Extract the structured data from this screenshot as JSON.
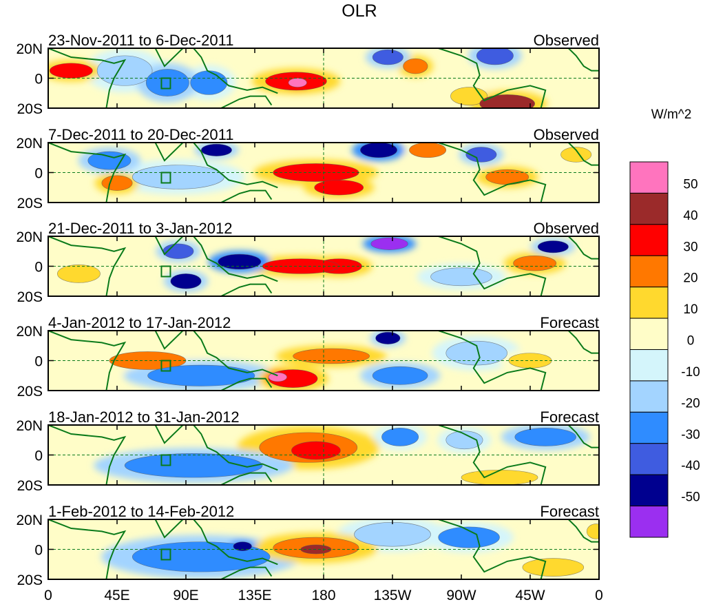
{
  "chart_data": {
    "type": "heatmap",
    "title": "OLR",
    "units": "W/m^2",
    "lat_ticks": [
      "20N",
      "0",
      "20S"
    ],
    "lon_ticks": [
      "0",
      "45E",
      "90E",
      "135E",
      "180",
      "135W",
      "90W",
      "45W",
      "0"
    ],
    "lon_range": [
      0,
      360
    ],
    "lat_range": [
      -20,
      20
    ],
    "colorbar": {
      "levels": [
        50,
        40,
        30,
        20,
        10,
        0,
        -10,
        -20,
        -30,
        -40,
        -50
      ],
      "colors": [
        "#ff74be",
        "#9b2a2a",
        "#ff0000",
        "#ff7800",
        "#ffd92e",
        "#fffdc8",
        "#d4f5fb",
        "#a3d4ff",
        "#2f8cff",
        "#3f5ce0",
        "#00008f",
        "#9b2ff0"
      ]
    },
    "panels": [
      {
        "period": "23-Nov-2011 to 6-Dec-2011",
        "label": "Observed",
        "anomalies": [
          {
            "lon": 15,
            "lat": 5,
            "rx": 14,
            "ry": 5,
            "v": 38
          },
          {
            "lon": 50,
            "lat": 5,
            "rx": 18,
            "ry": 10,
            "v": -15
          },
          {
            "lon": 78,
            "lat": -3,
            "rx": 14,
            "ry": 9,
            "v": -28
          },
          {
            "lon": 105,
            "lat": -3,
            "rx": 12,
            "ry": 8,
            "v": -22
          },
          {
            "lon": 162,
            "lat": -2,
            "rx": 20,
            "ry": 6,
            "v": 35
          },
          {
            "lon": 163,
            "lat": -3,
            "rx": 6,
            "ry": 3,
            "v": 55
          },
          {
            "lon": 222,
            "lat": 14,
            "rx": 10,
            "ry": 5,
            "v": -35
          },
          {
            "lon": 240,
            "lat": 8,
            "rx": 8,
            "ry": 5,
            "v": 24
          },
          {
            "lon": 292,
            "lat": 15,
            "rx": 12,
            "ry": 6,
            "v": -38
          },
          {
            "lon": 300,
            "lat": -17,
            "rx": 18,
            "ry": 6,
            "v": 40
          },
          {
            "lon": 275,
            "lat": -12,
            "rx": 12,
            "ry": 6,
            "v": 15
          }
        ]
      },
      {
        "period": "7-Dec-2011 to 20-Dec-2011",
        "label": "Observed",
        "anomalies": [
          {
            "lon": 40,
            "lat": 8,
            "rx": 14,
            "ry": 6,
            "v": -25
          },
          {
            "lon": 45,
            "lat": -7,
            "rx": 10,
            "ry": 5,
            "v": 28
          },
          {
            "lon": 110,
            "lat": 15,
            "rx": 10,
            "ry": 4,
            "v": -42
          },
          {
            "lon": 85,
            "lat": -3,
            "rx": 30,
            "ry": 8,
            "v": -15
          },
          {
            "lon": 175,
            "lat": 0,
            "rx": 28,
            "ry": 6,
            "v": 30
          },
          {
            "lon": 190,
            "lat": -10,
            "rx": 16,
            "ry": 5,
            "v": 35
          },
          {
            "lon": 216,
            "lat": 15,
            "rx": 12,
            "ry": 5,
            "v": -45
          },
          {
            "lon": 248,
            "lat": 15,
            "rx": 12,
            "ry": 5,
            "v": 22
          },
          {
            "lon": 283,
            "lat": 12,
            "rx": 10,
            "ry": 5,
            "v": -38
          },
          {
            "lon": 300,
            "lat": -3,
            "rx": 14,
            "ry": 5,
            "v": 25
          },
          {
            "lon": 345,
            "lat": 12,
            "rx": 10,
            "ry": 5,
            "v": 12
          }
        ]
      },
      {
        "period": "21-Dec-2011 to 3-Jan-2012",
        "label": "Observed",
        "anomalies": [
          {
            "lon": 20,
            "lat": -5,
            "rx": 14,
            "ry": 6,
            "v": 15
          },
          {
            "lon": 85,
            "lat": 10,
            "rx": 10,
            "ry": 5,
            "v": -40
          },
          {
            "lon": 90,
            "lat": -10,
            "rx": 10,
            "ry": 5,
            "v": -42
          },
          {
            "lon": 125,
            "lat": 3,
            "rx": 14,
            "ry": 5,
            "v": -45
          },
          {
            "lon": 165,
            "lat": 0,
            "rx": 25,
            "ry": 5,
            "v": 38
          },
          {
            "lon": 190,
            "lat": 0,
            "rx": 15,
            "ry": 5,
            "v": 30
          },
          {
            "lon": 223,
            "lat": 15,
            "rx": 12,
            "ry": 4,
            "v": -55
          },
          {
            "lon": 270,
            "lat": -7,
            "rx": 20,
            "ry": 6,
            "v": -12
          },
          {
            "lon": 318,
            "lat": 2,
            "rx": 14,
            "ry": 5,
            "v": 25
          },
          {
            "lon": 330,
            "lat": 13,
            "rx": 10,
            "ry": 4,
            "v": -42
          }
        ]
      },
      {
        "period": "4-Jan-2012 to 17-Jan-2012",
        "label": "Forecast",
        "anomalies": [
          {
            "lon": 65,
            "lat": 0,
            "rx": 25,
            "ry": 6,
            "v": 22
          },
          {
            "lon": 100,
            "lat": -10,
            "rx": 35,
            "ry": 7,
            "v": -25
          },
          {
            "lon": 160,
            "lat": -12,
            "rx": 16,
            "ry": 6,
            "v": 35
          },
          {
            "lon": 150,
            "lat": -11,
            "rx": 6,
            "ry": 3,
            "v": 55
          },
          {
            "lon": 185,
            "lat": 3,
            "rx": 25,
            "ry": 5,
            "v": 28
          },
          {
            "lon": 222,
            "lat": 15,
            "rx": 8,
            "ry": 4,
            "v": -42
          },
          {
            "lon": 230,
            "lat": -10,
            "rx": 18,
            "ry": 6,
            "v": -25
          },
          {
            "lon": 280,
            "lat": 5,
            "rx": 20,
            "ry": 8,
            "v": -12
          },
          {
            "lon": 315,
            "lat": 0,
            "rx": 14,
            "ry": 5,
            "v": 18
          }
        ]
      },
      {
        "period": "18-Jan-2012 to 31-Jan-2012",
        "label": "Forecast",
        "anomalies": [
          {
            "lon": 95,
            "lat": -7,
            "rx": 45,
            "ry": 8,
            "v": -28
          },
          {
            "lon": 170,
            "lat": 5,
            "rx": 32,
            "ry": 10,
            "v": 25
          },
          {
            "lon": 175,
            "lat": 3,
            "rx": 16,
            "ry": 6,
            "v": 35
          },
          {
            "lon": 230,
            "lat": 12,
            "rx": 12,
            "ry": 6,
            "v": -22
          },
          {
            "lon": 272,
            "lat": 10,
            "rx": 12,
            "ry": 6,
            "v": -18
          },
          {
            "lon": 325,
            "lat": 12,
            "rx": 20,
            "ry": 6,
            "v": -28
          },
          {
            "lon": 295,
            "lat": -15,
            "rx": 25,
            "ry": 5,
            "v": 12
          }
        ]
      },
      {
        "period": "1-Feb-2012 to 14-Feb-2012",
        "label": "Forecast",
        "anomalies": [
          {
            "lon": 100,
            "lat": -5,
            "rx": 45,
            "ry": 10,
            "v": -25
          },
          {
            "lon": 127,
            "lat": 2,
            "rx": 6,
            "ry": 3,
            "v": -45
          },
          {
            "lon": 175,
            "lat": 1,
            "rx": 28,
            "ry": 7,
            "v": 28
          },
          {
            "lon": 175,
            "lat": 0,
            "rx": 10,
            "ry": 3,
            "v": 42
          },
          {
            "lon": 225,
            "lat": 10,
            "rx": 25,
            "ry": 8,
            "v": -18
          },
          {
            "lon": 275,
            "lat": 8,
            "rx": 20,
            "ry": 7,
            "v": -22
          },
          {
            "lon": 330,
            "lat": -12,
            "rx": 20,
            "ry": 6,
            "v": 15
          },
          {
            "lon": 358,
            "lat": 12,
            "rx": 6,
            "ry": 5,
            "v": 18
          }
        ]
      }
    ]
  }
}
